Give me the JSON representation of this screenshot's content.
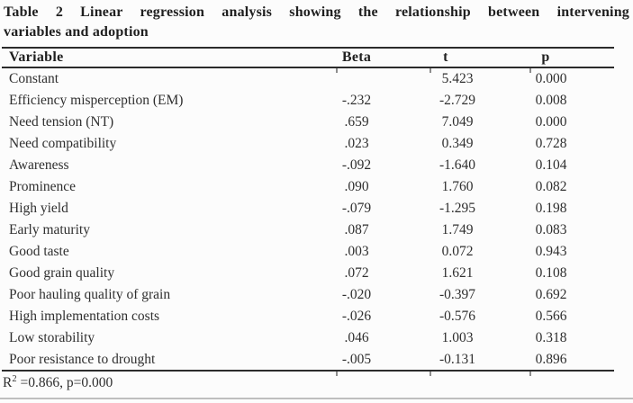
{
  "page": {
    "background": "#fcfcfc",
    "text_color": "#2f2f2f",
    "rule_color": "#2b2b2b",
    "faint_rule_color": "#bfbfbf"
  },
  "title": {
    "line1": "Table 2 Linear regression analysis showing the relationship between intervening",
    "line2": "variables and adoption"
  },
  "table": {
    "headers": {
      "variable": "Variable",
      "beta": "Beta",
      "t": "t",
      "p": "p"
    },
    "rows": [
      {
        "variable": "Constant",
        "beta": "",
        "t": "5.423",
        "p": "0.000"
      },
      {
        "variable": "Efficiency misperception (EM)",
        "beta": "-.232",
        "t": "-2.729",
        "p": "0.008"
      },
      {
        "variable": "Need tension (NT)",
        "beta": ".659",
        "t": "7.049",
        "p": "0.000"
      },
      {
        "variable": "Need compatibility",
        "beta": ".023",
        "t": "0.349",
        "p": "0.728"
      },
      {
        "variable": "Awareness",
        "beta": "-.092",
        "t": "-1.640",
        "p": "0.104"
      },
      {
        "variable": "Prominence",
        "beta": ".090",
        "t": "1.760",
        "p": "0.082"
      },
      {
        "variable": "High yield",
        "beta": "-.079",
        "t": "-1.295",
        "p": "0.198"
      },
      {
        "variable": "Early maturity",
        "beta": ".087",
        "t": "1.749",
        "p": "0.083"
      },
      {
        "variable": "Good taste",
        "beta": ".003",
        "t": "0.072",
        "p": "0.943"
      },
      {
        "variable": "Good grain quality",
        "beta": ".072",
        "t": "1.621",
        "p": "0.108"
      },
      {
        "variable": "Poor hauling quality of grain",
        "beta": "-.020",
        "t": "-0.397",
        "p": "0.692"
      },
      {
        "variable": "High implementation costs",
        "beta": "-.026",
        "t": "-0.576",
        "p": "0.566"
      },
      {
        "variable": "Low storability",
        "beta": ".046",
        "t": "1.003",
        "p": "0.318"
      },
      {
        "variable": "Poor resistance to drought",
        "beta": "-.005",
        "t": "-0.131",
        "p": "0.896"
      }
    ],
    "footer": {
      "r_label": "R",
      "r_sup": "2",
      "r_rest": " =0.866, p=0.000"
    }
  }
}
